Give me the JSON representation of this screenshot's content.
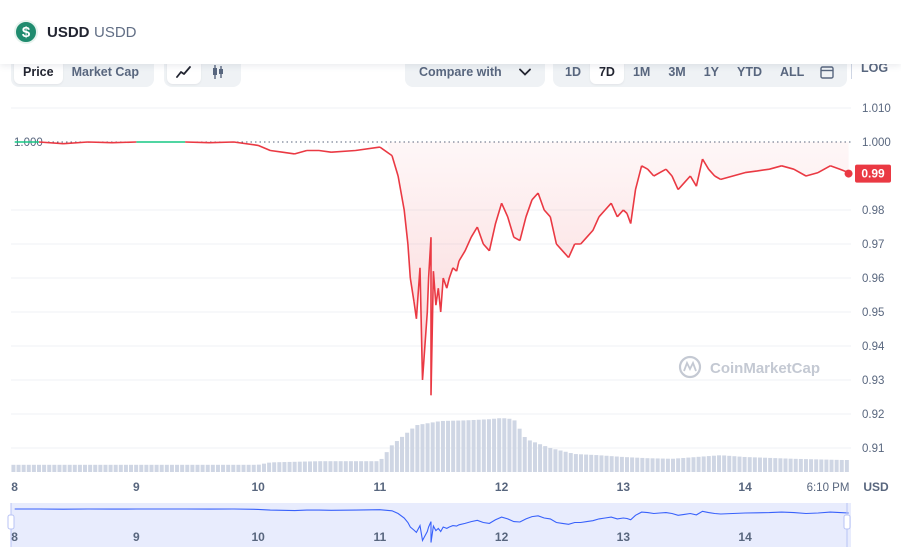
{
  "header": {
    "name": "USDD",
    "symbol": "USDD",
    "logo_glyph": "$"
  },
  "toolbar": {
    "type_tabs": [
      "Price",
      "Market Cap"
    ],
    "active_type": "Price",
    "compare_label": "Compare with",
    "ranges": [
      "1D",
      "7D",
      "1M",
      "3M",
      "1Y",
      "YTD",
      "ALL"
    ],
    "active_range": "7D",
    "log_label": "LOG"
  },
  "icons": {
    "line_chart": "line-chart-icon",
    "candle_chart": "candlestick-icon",
    "calendar": "calendar-icon",
    "compare_dropdown": "chevron-down-icon"
  },
  "colors": {
    "up": "#16c784",
    "down": "#ea3943",
    "navigator": "#3861fb",
    "volume": "#cfd6e4"
  },
  "watermark": "CoinMarketCap",
  "chart_data": {
    "type": "line",
    "currency_label": "USD",
    "reference_value": 1.0,
    "reference_label": "1.000",
    "current_value_label": "0.99",
    "ylim": [
      0.905,
      1.01
    ],
    "y_ticks": [
      1.01,
      1.0,
      0.98,
      0.97,
      0.96,
      0.95,
      0.94,
      0.93,
      0.92,
      0.91
    ],
    "y_tick_labels": [
      "1.010",
      "1.000",
      "0.98",
      "0.97",
      "0.96",
      "0.95",
      "0.94",
      "0.93",
      "0.92",
      "0.91"
    ],
    "xlim": [
      7.97,
      14.87
    ],
    "x_ticks": [
      8,
      9,
      10,
      11,
      12,
      13,
      14
    ],
    "x_tick_labels": [
      "8",
      "9",
      "10",
      "11",
      "12",
      "13",
      "14"
    ],
    "last_time_label": "6:10 PM",
    "price": {
      "x": [
        8.0,
        8.2,
        8.4,
        8.6,
        8.8,
        9.0,
        9.2,
        9.4,
        9.6,
        9.8,
        10.0,
        10.1,
        10.2,
        10.3,
        10.4,
        10.5,
        10.6,
        10.8,
        11.0,
        11.1,
        11.15,
        11.2,
        11.23,
        11.25,
        11.28,
        11.3,
        11.33,
        11.35,
        11.37,
        11.39,
        11.4,
        11.42,
        11.44,
        11.46,
        11.48,
        11.5,
        11.52,
        11.55,
        11.57,
        11.6,
        11.63,
        11.65,
        11.7,
        11.75,
        11.8,
        11.85,
        11.9,
        11.95,
        12.0,
        12.05,
        12.1,
        12.15,
        12.2,
        12.25,
        12.3,
        12.35,
        12.4,
        12.45,
        12.5,
        12.55,
        12.6,
        12.65,
        12.7,
        12.75,
        12.8,
        12.85,
        12.9,
        12.95,
        13.0,
        13.03,
        13.06,
        13.1,
        13.15,
        13.2,
        13.25,
        13.3,
        13.35,
        13.4,
        13.45,
        13.5,
        13.55,
        13.6,
        13.65,
        13.7,
        13.75,
        13.8,
        13.9,
        14.0,
        14.1,
        14.2,
        14.3,
        14.4,
        14.5,
        14.6,
        14.7,
        14.78,
        14.85
      ],
      "values": [
        1.0,
        1.0,
        0.9995,
        1.0,
        0.9998,
        1.0,
        1.0,
        1.0,
        0.9998,
        1.0,
        0.999,
        0.9975,
        0.997,
        0.9965,
        0.9975,
        0.9975,
        0.997,
        0.9975,
        0.9985,
        0.996,
        0.99,
        0.98,
        0.97,
        0.96,
        0.953,
        0.948,
        0.963,
        0.93,
        0.94,
        0.95,
        0.96,
        0.972,
        0.962,
        0.952,
        0.957,
        0.95,
        0.96,
        0.957,
        0.96,
        0.963,
        0.962,
        0.965,
        0.968,
        0.972,
        0.975,
        0.97,
        0.968,
        0.976,
        0.982,
        0.978,
        0.972,
        0.971,
        0.978,
        0.983,
        0.985,
        0.98,
        0.978,
        0.97,
        0.968,
        0.966,
        0.97,
        0.97,
        0.972,
        0.974,
        0.978,
        0.98,
        0.982,
        0.978,
        0.98,
        0.979,
        0.976,
        0.986,
        0.993,
        0.992,
        0.99,
        0.991,
        0.992,
        0.99,
        0.986,
        0.988,
        0.99,
        0.987,
        0.995,
        0.992,
        0.99,
        0.989,
        0.99,
        0.991,
        0.9915,
        0.992,
        0.993,
        0.992,
        0.99,
        0.991,
        0.993,
        0.992,
        0.991
      ],
      "spike_min": {
        "x": 11.42,
        "value": 0.9255
      }
    },
    "volume_profile": {
      "x": [
        8.0,
        9.0,
        10.0,
        10.1,
        10.5,
        11.0,
        11.1,
        11.3,
        11.5,
        11.7,
        11.9,
        12.0,
        12.1,
        12.2,
        12.4,
        12.6,
        12.8,
        13.0,
        13.2,
        13.4,
        13.6,
        13.8,
        14.0,
        14.4,
        14.8
      ],
      "level": [
        0.12,
        0.12,
        0.12,
        0.16,
        0.18,
        0.18,
        0.45,
        0.78,
        0.85,
        0.86,
        0.88,
        0.9,
        0.88,
        0.55,
        0.4,
        0.3,
        0.28,
        0.25,
        0.23,
        0.22,
        0.25,
        0.28,
        0.25,
        0.22,
        0.2
      ]
    }
  }
}
